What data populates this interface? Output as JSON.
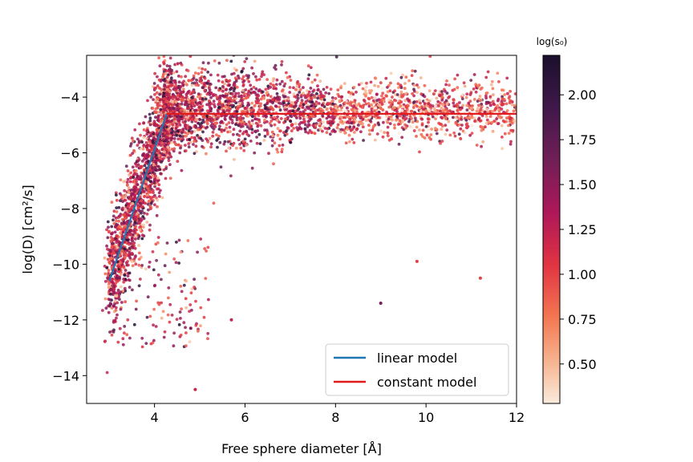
{
  "chart_data": {
    "type": "scatter",
    "xlabel": "Free sphere diameter [Å]",
    "ylabel": "log(D) [cm²/s]",
    "xlim": [
      2.5,
      12
    ],
    "ylim": [
      -15,
      -2.5
    ],
    "xticks": [
      4,
      6,
      8,
      10,
      12
    ],
    "yticks": [
      -14,
      -12,
      -10,
      -8,
      -6,
      -4
    ],
    "xtick_labels": [
      "4",
      "6",
      "8",
      "10",
      "12"
    ],
    "ytick_labels": [
      "−14",
      "−12",
      "−10",
      "−8",
      "−6",
      "−4"
    ],
    "grid": false,
    "legend_placement": "lower-right",
    "colorbar": {
      "title": "log(s₀)",
      "range": [
        0.28,
        2.22
      ],
      "ticks": [
        0.5,
        0.75,
        1.0,
        1.25,
        1.5,
        1.75,
        2.0
      ],
      "tick_labels": [
        "0.50",
        "0.75",
        "1.00",
        "1.25",
        "1.50",
        "1.75",
        "2.00"
      ],
      "colormap": "rocket_r"
    },
    "series": [
      {
        "name": "linear model",
        "type": "line",
        "color": "#1f77b4",
        "x": [
          3.0,
          4.27
        ],
        "y": [
          -10.6,
          -4.6
        ]
      },
      {
        "name": "constant model",
        "type": "line",
        "color": "#e31a1c",
        "x": [
          4.27,
          12.0
        ],
        "y": [
          -4.6,
          -4.6
        ]
      }
    ],
    "scatter": {
      "description_points": [
        {
          "x": 3.0,
          "y": -10.5,
          "c": 1.3
        },
        {
          "x": 3.1,
          "y": -11.5,
          "c": 1.5
        },
        {
          "x": 3.3,
          "y": -9.0,
          "c": 1.2
        },
        {
          "x": 3.5,
          "y": -7.5,
          "c": 1.4
        },
        {
          "x": 3.7,
          "y": -6.5,
          "c": 1.1
        },
        {
          "x": 4.0,
          "y": -5.0,
          "c": 1.3
        },
        {
          "x": 4.5,
          "y": -4.3,
          "c": 1.6
        },
        {
          "x": 5.0,
          "y": -4.2,
          "c": 1.4
        },
        {
          "x": 6.0,
          "y": -4.4,
          "c": 1.2
        },
        {
          "x": 7.0,
          "y": -4.3,
          "c": 1.0
        },
        {
          "x": 8.0,
          "y": -4.5,
          "c": 0.9
        },
        {
          "x": 9.0,
          "y": -4.4,
          "c": 0.8
        },
        {
          "x": 10.0,
          "y": -4.5,
          "c": 0.7
        },
        {
          "x": 11.0,
          "y": -4.4,
          "c": 0.6
        },
        {
          "x": 4.9,
          "y": -14.5,
          "c": 1.2
        },
        {
          "x": 9.8,
          "y": -9.9,
          "c": 1.0
        },
        {
          "x": 11.2,
          "y": -10.5,
          "c": 1.0
        },
        {
          "x": 9.0,
          "y": -11.4,
          "c": 1.6
        },
        {
          "x": 5.7,
          "y": -12.0,
          "c": 1.2
        },
        {
          "x": 4.8,
          "y": -12.3,
          "c": 1.6
        }
      ]
    }
  }
}
